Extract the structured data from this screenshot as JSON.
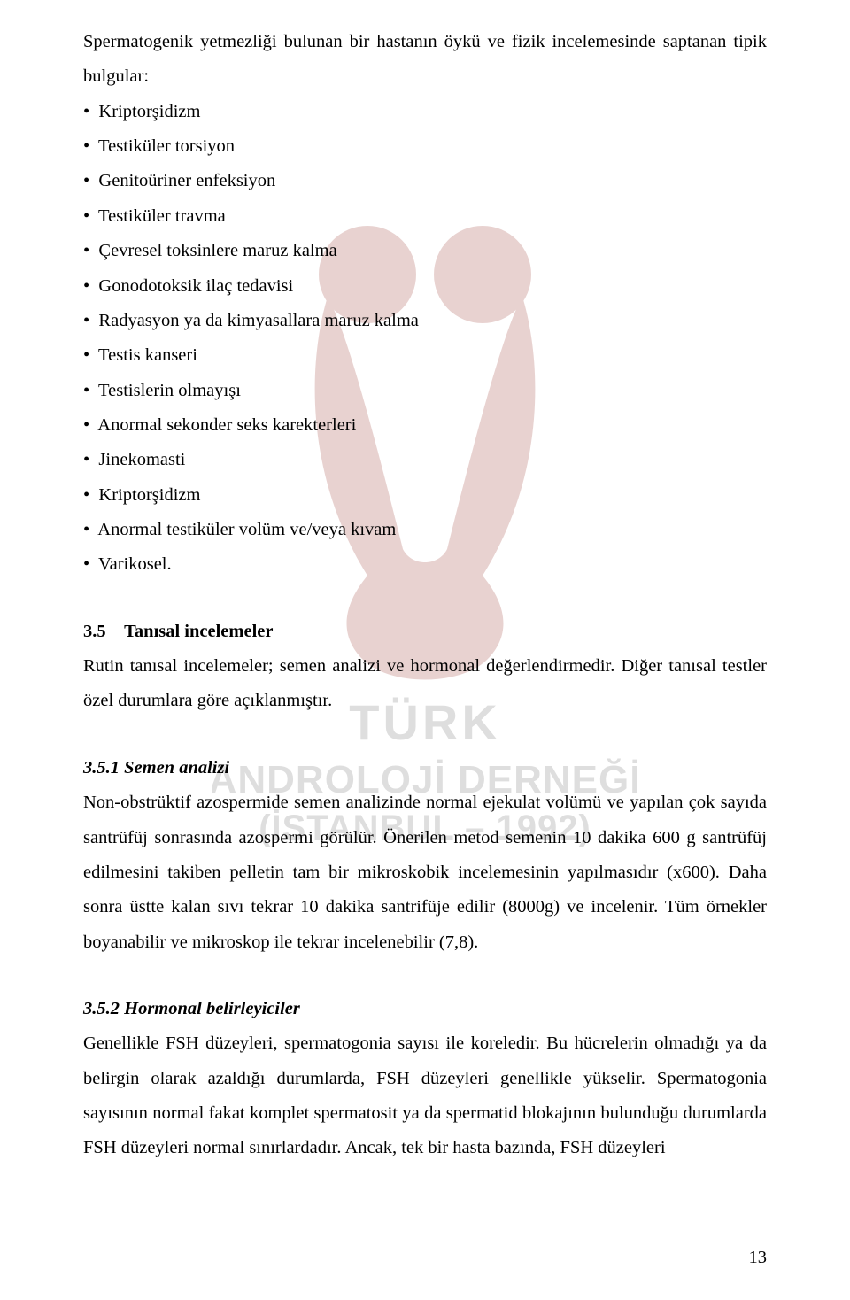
{
  "watermark": {
    "title1": "TÜRK",
    "title2": "ANDROLOJİ DERNEĞİ",
    "subtitle": "(İSTANBUL – 1992)",
    "shape_fill": "#b0615a",
    "text_color": "#8a8a8a",
    "bg_color": "#ffffff"
  },
  "intro": "Spermatogenik yetmezliği bulunan bir hastanın öykü ve fizik incelemesinde saptanan tipik bulgular:",
  "bullets": [
    "Kriptorşidizm",
    "Testiküler torsiyon",
    "Genitoüriner enfeksiyon",
    "Testiküler travma",
    "Çevresel toksinlere maruz kalma",
    "Gonodotoksik ilaç tedavisi",
    "Radyasyon ya da kimyasallara maruz kalma",
    "Testis kanseri",
    "Testislerin olmayışı",
    "Anormal sekonder seks karekterleri",
    "Jinekomasti",
    "Kriptorşidizm",
    "Anormal testiküler volüm ve/veya kıvam",
    "Varikosel."
  ],
  "s35": {
    "number": "3.5",
    "title": "Tanısal incelemeler",
    "para": "Rutin tanısal incelemeler; semen analizi ve hormonal değerlendirmedir. Diğer tanısal testler özel durumlara göre açıklanmıştır."
  },
  "s351": {
    "heading": "3.5.1    Semen analizi",
    "para": "Non-obstrüktif azospermide semen analizinde normal ejekulat volümü ve yapılan çok sayıda santrüfüj sonrasında azospermi görülür. Önerilen metod semenin 10 dakika 600 g santrüfüj edilmesini takiben pelletin tam bir mikroskobik incelemesinin yapılmasıdır (x600). Daha sonra üstte kalan sıvı tekrar 10 dakika santrifüje edilir (8000g) ve incelenir. Tüm örnekler boyanabilir ve mikroskop ile tekrar incelenebilir (7,8)."
  },
  "s352": {
    "heading": "3.5.2    Hormonal belirleyiciler",
    "para": "Genellikle FSH düzeyleri, spermatogonia sayısı ile koreledir. Bu hücrelerin olmadığı ya da belirgin olarak azaldığı durumlarda, FSH düzeyleri genellikle yükselir. Spermatogonia sayısının normal fakat komplet spermatosit ya da spermatid blokajının bulunduğu durumlarda FSH düzeyleri normal sınırlardadır. Ancak, tek bir hasta bazında, FSH düzeyleri"
  },
  "pageNumber": "13"
}
